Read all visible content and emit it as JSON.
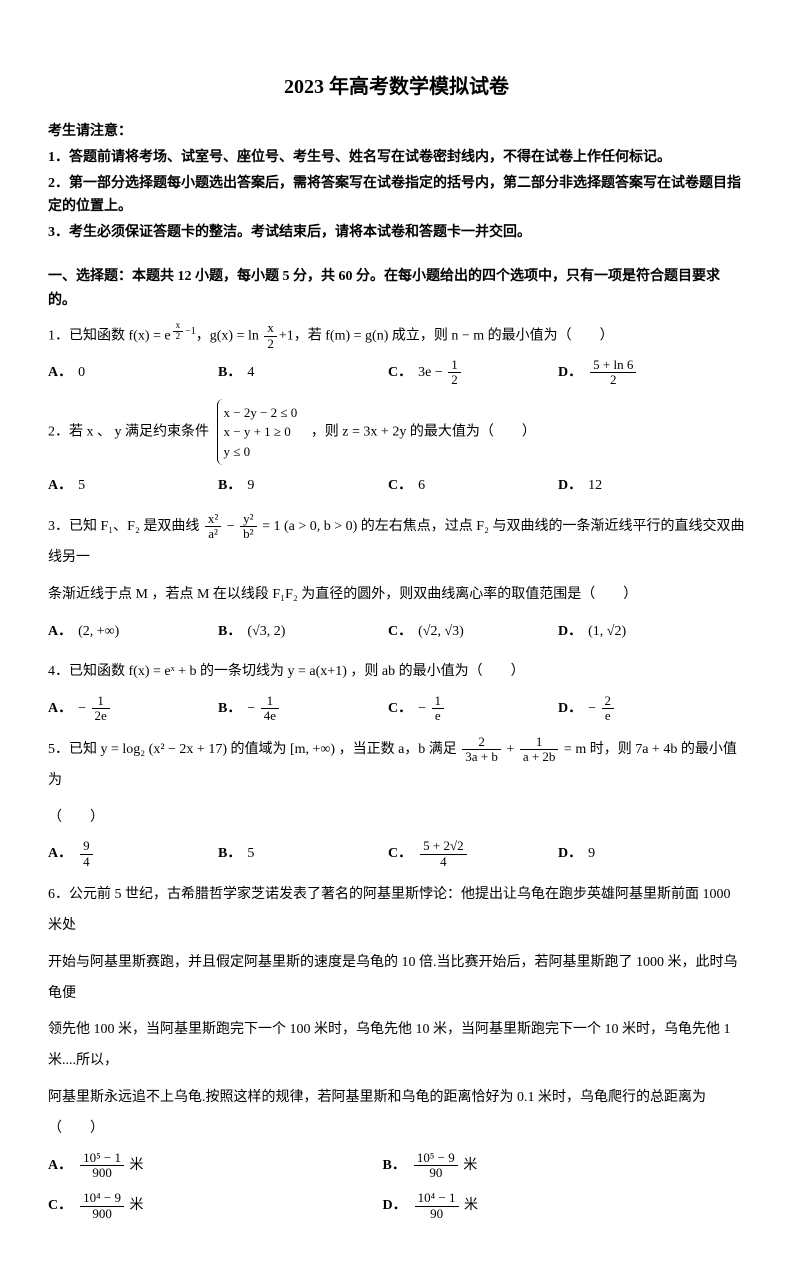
{
  "title": "2023 年高考数学模拟试卷",
  "notice": {
    "heading": "考生请注意：",
    "items": [
      "1．答题前请将考场、试室号、座位号、考生号、姓名写在试卷密封线内，不得在试卷上作任何标记。",
      "2．第一部分选择题每小题选出答案后，需将答案写在试卷指定的括号内，第二部分非选择题答案写在试卷题目指定的位置上。",
      "3．考生必须保证答题卡的整洁。考试结束后，请将本试卷和答题卡一并交回。"
    ]
  },
  "section1": {
    "heading": "一、选择题：本题共 12 小题，每小题 5 分，共 60 分。在每小题给出的四个选项中，只有一项是符合题目要求的。"
  },
  "q1": {
    "stem_pre": "1．已知函数 f(x) = e",
    "exp_num": "x",
    "exp_den": "2",
    "exp_tail": "−1",
    "stem_mid": "，g(x) = ln",
    "g_num": "x",
    "g_den": "2",
    "stem_mid2": "+1，若 f(m) = g(n) 成立，则 n − m 的最小值为（　　）",
    "A": "0",
    "B": "4",
    "C_pre": "3e −",
    "C_num": "1",
    "C_den": "2",
    "D_num": "5 + ln 6",
    "D_den": "2"
  },
  "q2": {
    "stem_pre": "2．若 x 、 y 满足约束条件",
    "c1": "x − 2y − 2 ≤ 0",
    "c2": "x − y + 1 ≥ 0",
    "c3": "y ≤ 0",
    "stem_post": "，则 z = 3x + 2y 的最大值为（　　）",
    "A": "5",
    "B": "9",
    "C": "6",
    "D": "12"
  },
  "q3": {
    "stem_pre": "3．已知 F₁、F₂ 是双曲线 ",
    "t1_num": "x²",
    "t1_den": "a²",
    "minus": " − ",
    "t2_num": "y²",
    "t2_den": "b²",
    "stem_mid": " = 1 (a > 0, b > 0) 的左右焦点，过点 F₂ 与双曲线的一条渐近线平行的直线交双曲线另一",
    "stem_line2": "条渐近线于点 M ，若点 M 在以线段 F₁F₂ 为直径的圆外，则双曲线离心率的取值范围是（　　）",
    "A": "(2, +∞)",
    "B": "(√3, 2)",
    "C": "(√2, √3)",
    "D": "(1, √2)"
  },
  "q4": {
    "stem": "4．已知函数 f(x) = eˣ + b 的一条切线为 y = a(x+1) ，则 ab 的最小值为（　　）",
    "A_pre": "−",
    "A_num": "1",
    "A_den": "2e",
    "B_pre": "−",
    "B_num": "1",
    "B_den": "4e",
    "C_pre": "−",
    "C_num": "1",
    "C_den": "e",
    "D_pre": "−",
    "D_num": "2",
    "D_den": "e"
  },
  "q5": {
    "stem_pre": "5．已知 y = log₂ (x² − 2x + 17) 的值域为 [m, +∞) ，当正数 a，b 满足 ",
    "f1_num": "2",
    "f1_den": "3a + b",
    "plus": " + ",
    "f2_num": "1",
    "f2_den": "a + 2b",
    "stem_post": " = m 时，则 7a + 4b 的最小值为",
    "stem_line2": "（　　）",
    "A_num": "9",
    "A_den": "4",
    "B": "5",
    "C_num": "5 + 2√2",
    "C_den": "4",
    "D": "9"
  },
  "q6": {
    "p1": "6．公元前 5 世纪，古希腊哲学家芝诺发表了著名的阿基里斯悖论：他提出让乌龟在跑步英雄阿基里斯前面 1000 米处",
    "p2": "开始与阿基里斯赛跑，并且假定阿基里斯的速度是乌龟的 10 倍.当比赛开始后，若阿基里斯跑了 1000 米，此时乌龟便",
    "p3": "领先他 100 米，当阿基里斯跑完下一个 100 米时，乌龟先他 10 米，当阿基里斯跑完下一个 10 米时，乌龟先他 1 米....所以，",
    "p4": "阿基里斯永远追不上乌龟.按照这样的规律，若阿基里斯和乌龟的距离恰好为 0.1 米时，乌龟爬行的总距离为（　　）",
    "A_num": "10⁵ − 1",
    "A_den": "900",
    "A_unit": "米",
    "B_num": "10⁵ − 9",
    "B_den": "90",
    "B_unit": "米",
    "C_num": "10⁴ − 9",
    "C_den": "900",
    "C_unit": "米",
    "D_num": "10⁴ − 1",
    "D_den": "90",
    "D_unit": "米"
  }
}
